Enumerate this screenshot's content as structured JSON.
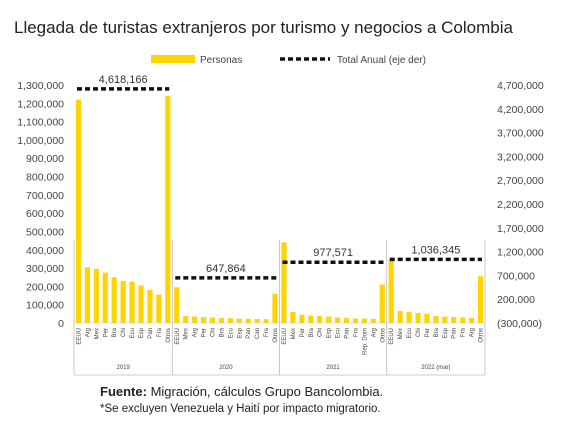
{
  "chart_data": {
    "type": "bar",
    "title": "Llegada de turistas extranjeros por turismo y negocios a Colombia",
    "legend": {
      "placement": "top",
      "entries": [
        "Personas",
        "Total Anual (eje der)"
      ]
    },
    "colors": {
      "bars": "#FFD400",
      "line": "#111111"
    },
    "left_axis": {
      "ylim": [
        0,
        1300000
      ],
      "ticks": [
        "0",
        "100,000",
        "200,000",
        "300,000",
        "400,000",
        "500,000",
        "600,000",
        "700,000",
        "800,000",
        "900,000",
        "1,000,000",
        "1,100,000",
        "1,200,000",
        "1,300,000"
      ]
    },
    "right_axis": {
      "ylim": [
        -300000,
        4700000
      ],
      "ticks": [
        "(300,000)",
        "200,000",
        "700,000",
        "1,200,000",
        "1,700,000",
        "2,200,000",
        "2,700,000",
        "3,200,000",
        "3,700,000",
        "4,200,000",
        "4,700,000"
      ]
    },
    "groups": [
      {
        "year": "2019",
        "categories": [
          "EEUU",
          "Arg",
          "Mex",
          "Per",
          "Bra",
          "Chi",
          "Ecu",
          "Esp",
          "Pan",
          "Fra",
          "Otros"
        ],
        "values": [
          1220000,
          305000,
          295000,
          275000,
          250000,
          230000,
          225000,
          205000,
          180000,
          155000,
          1240000
        ],
        "total": 4618166,
        "total_label": "4,618,166"
      },
      {
        "year": "2020",
        "categories": [
          "EEUU",
          "Mex",
          "Arg",
          "Per",
          "Chi",
          "Bra",
          "Ecu",
          "Esp",
          "Pan",
          "Can",
          "Fra",
          "Otros"
        ],
        "values": [
          195000,
          38000,
          35000,
          32000,
          30000,
          27000,
          26000,
          24000,
          23000,
          22000,
          21000,
          160000
        ],
        "total": 647864,
        "total_label": "647,864"
      },
      {
        "year": "2021",
        "categories": [
          "EEUU",
          "Mex",
          "Per",
          "Bra",
          "Chi",
          "Esp",
          "Ecu",
          "Pan",
          "Fra",
          "Rep. Dom",
          "Arg",
          "Otros"
        ],
        "values": [
          440000,
          60000,
          45000,
          40000,
          38000,
          35000,
          30000,
          28000,
          25000,
          24000,
          23000,
          210000
        ],
        "total": 977571,
        "total_label": "977,571"
      },
      {
        "year": "2022 (mar)",
        "categories": [
          "EEUU",
          "Mex",
          "Ecu",
          "Chi",
          "Per",
          "Bra",
          "Esp",
          "Pan",
          "Fra",
          "Arg",
          "Otros"
        ],
        "values": [
          345000,
          65000,
          60000,
          55000,
          50000,
          38000,
          35000,
          32000,
          30000,
          28000,
          255000
        ],
        "total": 1036345,
        "total_label": "1,036,345"
      }
    ]
  },
  "footer": {
    "source_bold": "Fuente:",
    "source_text": " Migración, cálculos Grupo Bancolombia.",
    "note": "*Se excluyen Venezuela y Haití por impacto migratorio."
  }
}
